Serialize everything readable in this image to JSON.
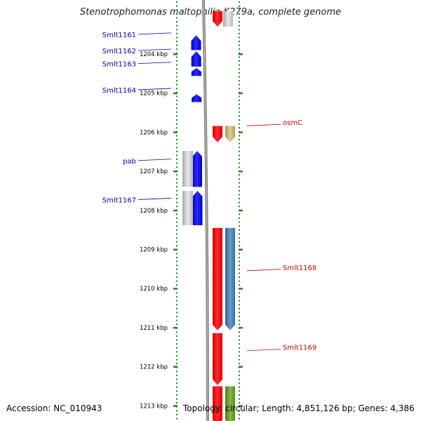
{
  "title": "Stenotrophomonas maltophilia K279a, complete genome",
  "footer": {
    "accession": "Accession: NC_010943",
    "summary": "Topology: circular; Length: 4,851,126 bp; Genes: 4,386"
  },
  "colors": {
    "ruler": "#1a8a1a",
    "forward_gene": "#0000ee",
    "reverse_gene": "#ee0000",
    "gray_feature": "#c8c8c8",
    "olive_feature": "#c8b870",
    "steel_feature": "#4a7fb0",
    "green_feature": "#6a9a2a",
    "backbone": "#808080",
    "left_label": "#0000aa",
    "right_label": "#cc0000"
  },
  "ruler": {
    "units": "kbp",
    "ticks": [
      {
        "kbp": 1204,
        "label": "1204 kbp"
      },
      {
        "kbp": 1205,
        "label": "1205 kbp"
      },
      {
        "kbp": 1206,
        "label": "1206 kbp"
      },
      {
        "kbp": 1207,
        "label": "1207 kbp"
      },
      {
        "kbp": 1208,
        "label": "1208 kbp"
      },
      {
        "kbp": 1209,
        "label": "1209 kbp"
      },
      {
        "kbp": 1210,
        "label": "1210 kbp"
      },
      {
        "kbp": 1211,
        "label": "1211 kbp"
      },
      {
        "kbp": 1212,
        "label": "1212 kbp"
      },
      {
        "kbp": 1213,
        "label": "1213 kbp"
      }
    ]
  },
  "genes_forward": [
    {
      "label": "Smlt1161",
      "start_kbp": 1203.52,
      "end_kbp": 1203.9
    },
    {
      "label": "Smlt1162",
      "start_kbp": 1203.93,
      "end_kbp": 1204.32
    },
    {
      "label": "Smlt1163",
      "start_kbp": 1204.36,
      "end_kbp": 1204.56
    },
    {
      "label": "Smlt1164",
      "start_kbp": 1205.03,
      "end_kbp": 1205.23
    },
    {
      "label": "pab",
      "start_kbp": 1206.48,
      "end_kbp": 1207.4
    },
    {
      "label": "Smlt1167",
      "start_kbp": 1207.5,
      "end_kbp": 1208.38
    }
  ],
  "genes_reverse": [
    {
      "label": "osmC",
      "start_kbp": 1205.84,
      "end_kbp": 1206.26
    },
    {
      "label": "Smlt1168",
      "start_kbp": 1208.45,
      "end_kbp": 1211.07
    },
    {
      "label": "Smlt1169",
      "start_kbp": 1211.14,
      "end_kbp": 1212.47
    },
    {
      "label": "",
      "start_kbp": 1212.5,
      "end_kbp": 1213.5
    },
    {
      "label": "",
      "start_kbp": 1202.9,
      "end_kbp": 1203.3
    }
  ],
  "features_gray_left": [
    {
      "start_kbp": 1206.48,
      "end_kbp": 1207.4
    },
    {
      "start_kbp": 1207.5,
      "end_kbp": 1208.38
    }
  ],
  "features_right": [
    {
      "color": "olive",
      "start_kbp": 1205.84,
      "end_kbp": 1206.26
    },
    {
      "color": "steel",
      "start_kbp": 1208.45,
      "end_kbp": 1211.07
    },
    {
      "color": "green",
      "start_kbp": 1212.5,
      "end_kbp": 1213.5
    },
    {
      "color": "gray",
      "start_kbp": 1202.9,
      "end_kbp": 1203.3
    }
  ]
}
